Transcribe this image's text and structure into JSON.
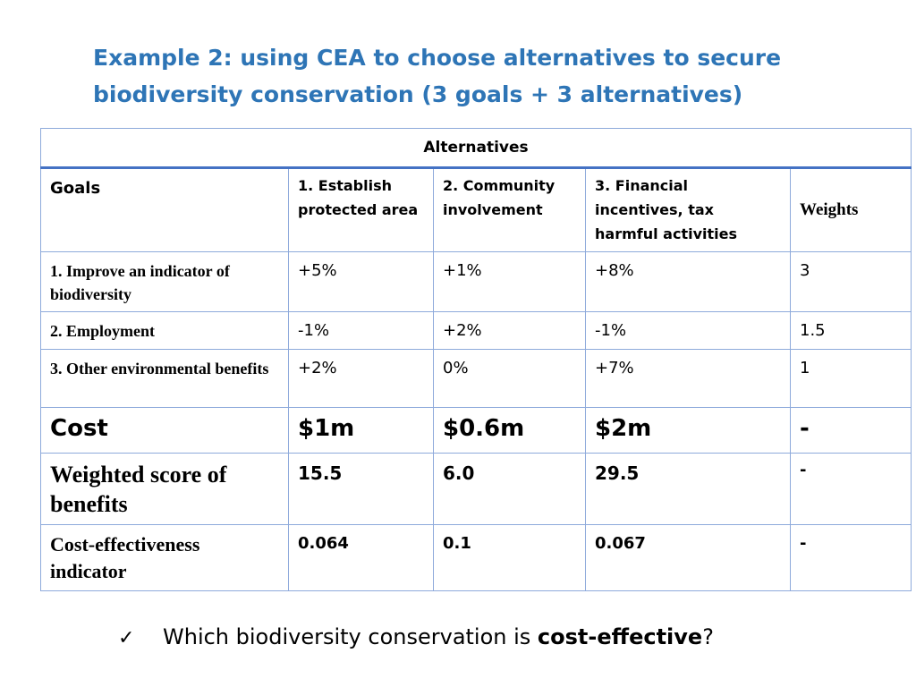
{
  "title": {
    "line1": "Example 2: using CEA to choose alternatives to secure",
    "line2": "biodiversity conservation (3 goals + 3 alternatives)"
  },
  "table": {
    "alternatives_header": "Alternatives",
    "goals_header": "Goals",
    "columns": [
      "1. Establish protected area",
      "2. Community involvement",
      "3. Financial incentives, tax harmful activities"
    ],
    "weights_header": "Weights",
    "rows": [
      {
        "label": "1. Improve an indicator of biodiversity",
        "values": [
          "+5%",
          "+1%",
          "+8%"
        ],
        "weight": "3"
      },
      {
        "label": "2. Employment",
        "values": [
          "-1%",
          "+2%",
          "-1%"
        ],
        "weight": "1.5"
      },
      {
        "label": "3. Other environmental benefits",
        "values": [
          "+2%",
          "0%",
          "+7%"
        ],
        "weight": "1"
      }
    ],
    "cost": {
      "label": "Cost",
      "values": [
        "$1m",
        "$0.6m",
        "$2m"
      ],
      "weight": "-"
    },
    "weighted_score": {
      "label": "Weighted score of benefits",
      "values": [
        "15.5",
        "6.0",
        "29.5"
      ],
      "weight": "-"
    },
    "cost_effectiveness": {
      "label": "Cost-effectiveness indicator",
      "values": [
        "0.064",
        "0.1",
        "0.067"
      ],
      "weight": "-"
    }
  },
  "question": {
    "check_icon": "✓",
    "text_before": "Which biodiversity conservation is ",
    "emphasis": "cost-effective",
    "text_after": "?"
  },
  "colors": {
    "title_blue": "#2e75b6",
    "cost_red": "#c00000",
    "border_blue": "#8eaadb",
    "header_rule_blue": "#4472c4"
  }
}
